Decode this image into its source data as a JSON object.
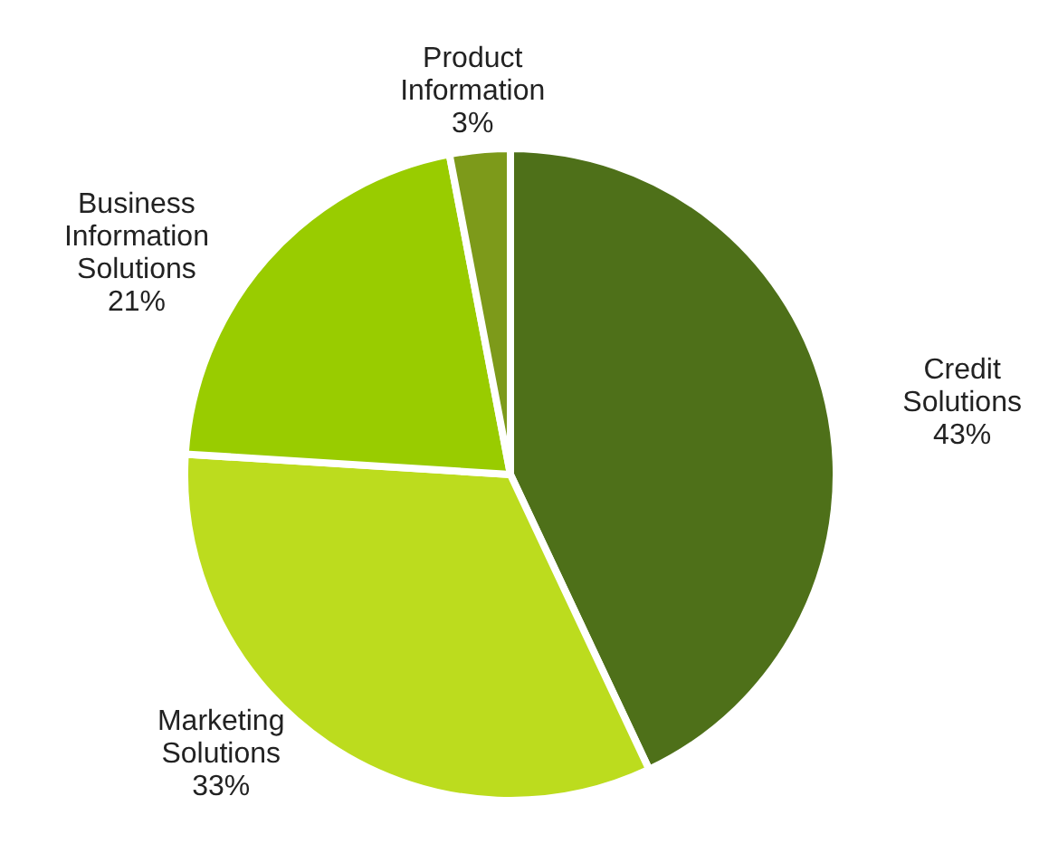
{
  "chart_data": {
    "type": "pie",
    "categories": [
      "Credit Solutions",
      "Marketing Solutions",
      "Business Information Solutions",
      "Product Information"
    ],
    "values": [
      43,
      33,
      21,
      3
    ],
    "colors": [
      "#4e7019",
      "#bcdc1e",
      "#99cc00",
      "#7d9a1a"
    ],
    "value_labels": [
      "43%",
      "33%",
      "21%",
      "3%"
    ]
  }
}
